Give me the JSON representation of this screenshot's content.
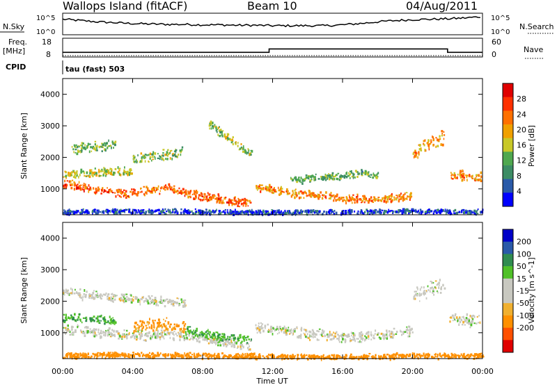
{
  "header": {
    "station": "Wallops Island (fitACF)",
    "beam": "Beam 10",
    "date": "04/Aug/2011"
  },
  "summary_panels": {
    "nsky_label": "N.Sky",
    "nsearch_label": "N.Search",
    "nsky_ticks": [
      "10^5",
      "10^0"
    ],
    "nsearch_ticks": [
      "10^5",
      "10^0"
    ],
    "freq_label": "Freq.",
    "freq_unit": "[MHz]",
    "freq_ticks": [
      "18",
      "8"
    ],
    "nave_label": "Nave",
    "nave_ticks": [
      "60",
      "0"
    ],
    "cpid_label": "CPID",
    "cpid_value": "tau (fast) 503"
  },
  "colors": {
    "power_scale": [
      "#0000ff",
      "#2a5aa8",
      "#3c8c64",
      "#4fa84f",
      "#c8c828",
      "#f0a000",
      "#ff7000",
      "#ff3000",
      "#e00000"
    ],
    "velocity_scale": [
      "#e00000",
      "#ff5000",
      "#ff9000",
      "#f0b030",
      "#c8c8c0",
      "#c8c8c0",
      "#50c028",
      "#308c50",
      "#2a5aa8",
      "#0000c8"
    ]
  },
  "chart_data": [
    {
      "type": "line",
      "title": "",
      "series": [
        {
          "name": "N.Sky",
          "x": [
            0,
            1,
            2,
            3,
            4,
            5,
            6,
            7,
            8,
            9,
            10,
            11,
            12,
            13,
            14,
            15,
            16,
            17,
            18,
            19,
            20,
            21,
            22,
            23,
            24
          ],
          "values": [
            3.6,
            3.3,
            3.0,
            2.8,
            2.6,
            2.5,
            2.4,
            2.4,
            2.3,
            2.3,
            2.2,
            2.2,
            2.1,
            2.1,
            2.1,
            2.1,
            2.3,
            2.6,
            3.0,
            3.3,
            3.5,
            3.6,
            3.7,
            3.9,
            4.2
          ]
        }
      ],
      "xlim": [
        0,
        24
      ],
      "ylim": [
        0,
        5
      ],
      "ylabel": "N.Sky",
      "y_scale": "log"
    },
    {
      "type": "line",
      "title": "",
      "series": [
        {
          "name": "Freq.",
          "x": [
            0,
            11.8,
            11.8,
            22.0,
            22.0,
            24
          ],
          "values": [
            10.5,
            10.5,
            12.3,
            12.3,
            10.5,
            10.5
          ]
        }
      ],
      "xlim": [
        0,
        24
      ],
      "ylim": [
        8,
        18
      ],
      "ylabel": "Freq. [MHz]"
    },
    {
      "type": "heatmap",
      "title": "",
      "xlabel": "",
      "ylabel": "Slant Range [km]",
      "xlim": [
        0,
        24
      ],
      "ylim": [
        180,
        4500
      ],
      "y_ticks": [
        1000,
        2000,
        3000,
        4000
      ],
      "colorbar_label": "Power [dB]",
      "colorbar_ticks": [
        4,
        8,
        12,
        16,
        20,
        24,
        28
      ],
      "colorbar_range": [
        0,
        32
      ],
      "features": [
        {
          "x": [
            0.0,
            0.5,
            1.0,
            1.5,
            2.0,
            2.5,
            3.0,
            3.5,
            4.0,
            5.0,
            6.0,
            7.0,
            8.0,
            9.0,
            10.0,
            10.7
          ],
          "range": [
            1200,
            1180,
            1100,
            1050,
            1000,
            950,
            900,
            880,
            900,
            1000,
            1050,
            900,
            800,
            700,
            600,
            600
          ],
          "width": 160,
          "power": 24
        },
        {
          "x": [
            0.0,
            1.0,
            2.0,
            3.0,
            4.0
          ],
          "range": [
            1450,
            1500,
            1550,
            1600,
            1550
          ],
          "width": 160,
          "power": 16
        },
        {
          "x": [
            0.5,
            1.5,
            2.5,
            3.0
          ],
          "range": [
            2300,
            2350,
            2400,
            2450
          ],
          "width": 180,
          "power": 12
        },
        {
          "x": [
            4.0,
            5.0,
            6.0,
            6.8
          ],
          "range": [
            2000,
            2050,
            2100,
            2200
          ],
          "width": 200,
          "power": 14
        },
        {
          "x": [
            8.3,
            8.8,
            9.5,
            10.3,
            10.8
          ],
          "range": [
            3100,
            2900,
            2600,
            2300,
            2100
          ],
          "width": 160,
          "power": 14
        },
        {
          "x": [
            11.0,
            12.0,
            13.0,
            14.0,
            15.0,
            16.0,
            17.0,
            18.0,
            19.0,
            20.0
          ],
          "range": [
            1100,
            1000,
            900,
            850,
            800,
            750,
            700,
            700,
            750,
            800
          ],
          "width": 150,
          "power": 22
        },
        {
          "x": [
            13.0,
            14.0,
            15.0,
            16.0,
            17.0,
            18.0
          ],
          "range": [
            1300,
            1350,
            1400,
            1450,
            1500,
            1450
          ],
          "width": 140,
          "power": 12
        },
        {
          "x": [
            20.0,
            20.5,
            21.0,
            21.8
          ],
          "range": [
            2100,
            2300,
            2500,
            2700
          ],
          "width": 250,
          "power": 20
        },
        {
          "x": [
            22.1,
            23.0,
            23.9
          ],
          "range": [
            1500,
            1450,
            1400
          ],
          "width": 200,
          "power": 22
        },
        {
          "x": [
            0.0,
            4.0,
            8.0,
            12.0,
            16.0,
            20.0,
            24.0
          ],
          "range": [
            300,
            320,
            300,
            280,
            300,
            320,
            300
          ],
          "width": 90,
          "power": 4
        }
      ]
    },
    {
      "type": "heatmap",
      "title": "",
      "xlabel": "Time UT",
      "ylabel": "Slant Range [km]",
      "xlim": [
        0,
        24
      ],
      "ylim": [
        180,
        4500
      ],
      "x_ticks": [
        "00:00",
        "04:00",
        "08:00",
        "12:00",
        "16:00",
        "20:00",
        "00:00"
      ],
      "y_ticks": [
        1000,
        2000,
        3000,
        4000
      ],
      "colorbar_label": "Velocity [m s^-1]",
      "colorbar_ticks": [
        200,
        100,
        50,
        15,
        -15,
        -50,
        -100,
        -200
      ],
      "features": [
        {
          "x": [
            0.0,
            1.0,
            2.0,
            3.0,
            4.0,
            5.0,
            6.0,
            7.0,
            8.0,
            9.0,
            10.0,
            10.7
          ],
          "range": [
            1150,
            1100,
            1050,
            1000,
            950,
            950,
            1000,
            950,
            850,
            750,
            650,
            600
          ],
          "width": 200,
          "velocity": 0
        },
        {
          "x": [
            4.0,
            4.5,
            5.0,
            5.5,
            6.0,
            6.5,
            7.0
          ],
          "range": [
            1200,
            1250,
            1300,
            1250,
            1300,
            1250,
            1200
          ],
          "width": 220,
          "velocity": -60
        },
        {
          "x": [
            7.0,
            8.0,
            9.0,
            10.0,
            10.8
          ],
          "range": [
            1100,
            1000,
            900,
            850,
            800
          ],
          "width": 150,
          "velocity": 40
        },
        {
          "x": [
            0.0,
            1.0,
            2.0,
            3.0
          ],
          "range": [
            1500,
            1480,
            1450,
            1400
          ],
          "width": 150,
          "velocity": 45
        },
        {
          "x": [
            0.0,
            1.0,
            2.0,
            3.0,
            4.0,
            5.0,
            6.0,
            7.0
          ],
          "range": [
            2300,
            2250,
            2200,
            2150,
            2100,
            2050,
            2000,
            1950
          ],
          "width": 180,
          "velocity": 0
        },
        {
          "x": [
            11.0,
            12.0,
            13.0,
            14.0,
            15.0,
            16.0,
            17.0,
            18.0,
            19.0,
            20.0
          ],
          "range": [
            1200,
            1100,
            1050,
            1000,
            950,
            900,
            900,
            950,
            1000,
            1100
          ],
          "width": 200,
          "velocity": 0
        },
        {
          "x": [
            20.0,
            21.0,
            21.8
          ],
          "range": [
            2200,
            2400,
            2600
          ],
          "width": 300,
          "velocity": 0
        },
        {
          "x": [
            22.1,
            23.0,
            23.9
          ],
          "range": [
            1500,
            1450,
            1400
          ],
          "width": 250,
          "velocity": 0
        },
        {
          "x": [
            0.0,
            4.0,
            8.0,
            12.0,
            16.0,
            20.0,
            24.0
          ],
          "range": [
            300,
            320,
            300,
            280,
            250,
            300,
            300
          ],
          "width": 100,
          "velocity": -80
        }
      ]
    }
  ]
}
